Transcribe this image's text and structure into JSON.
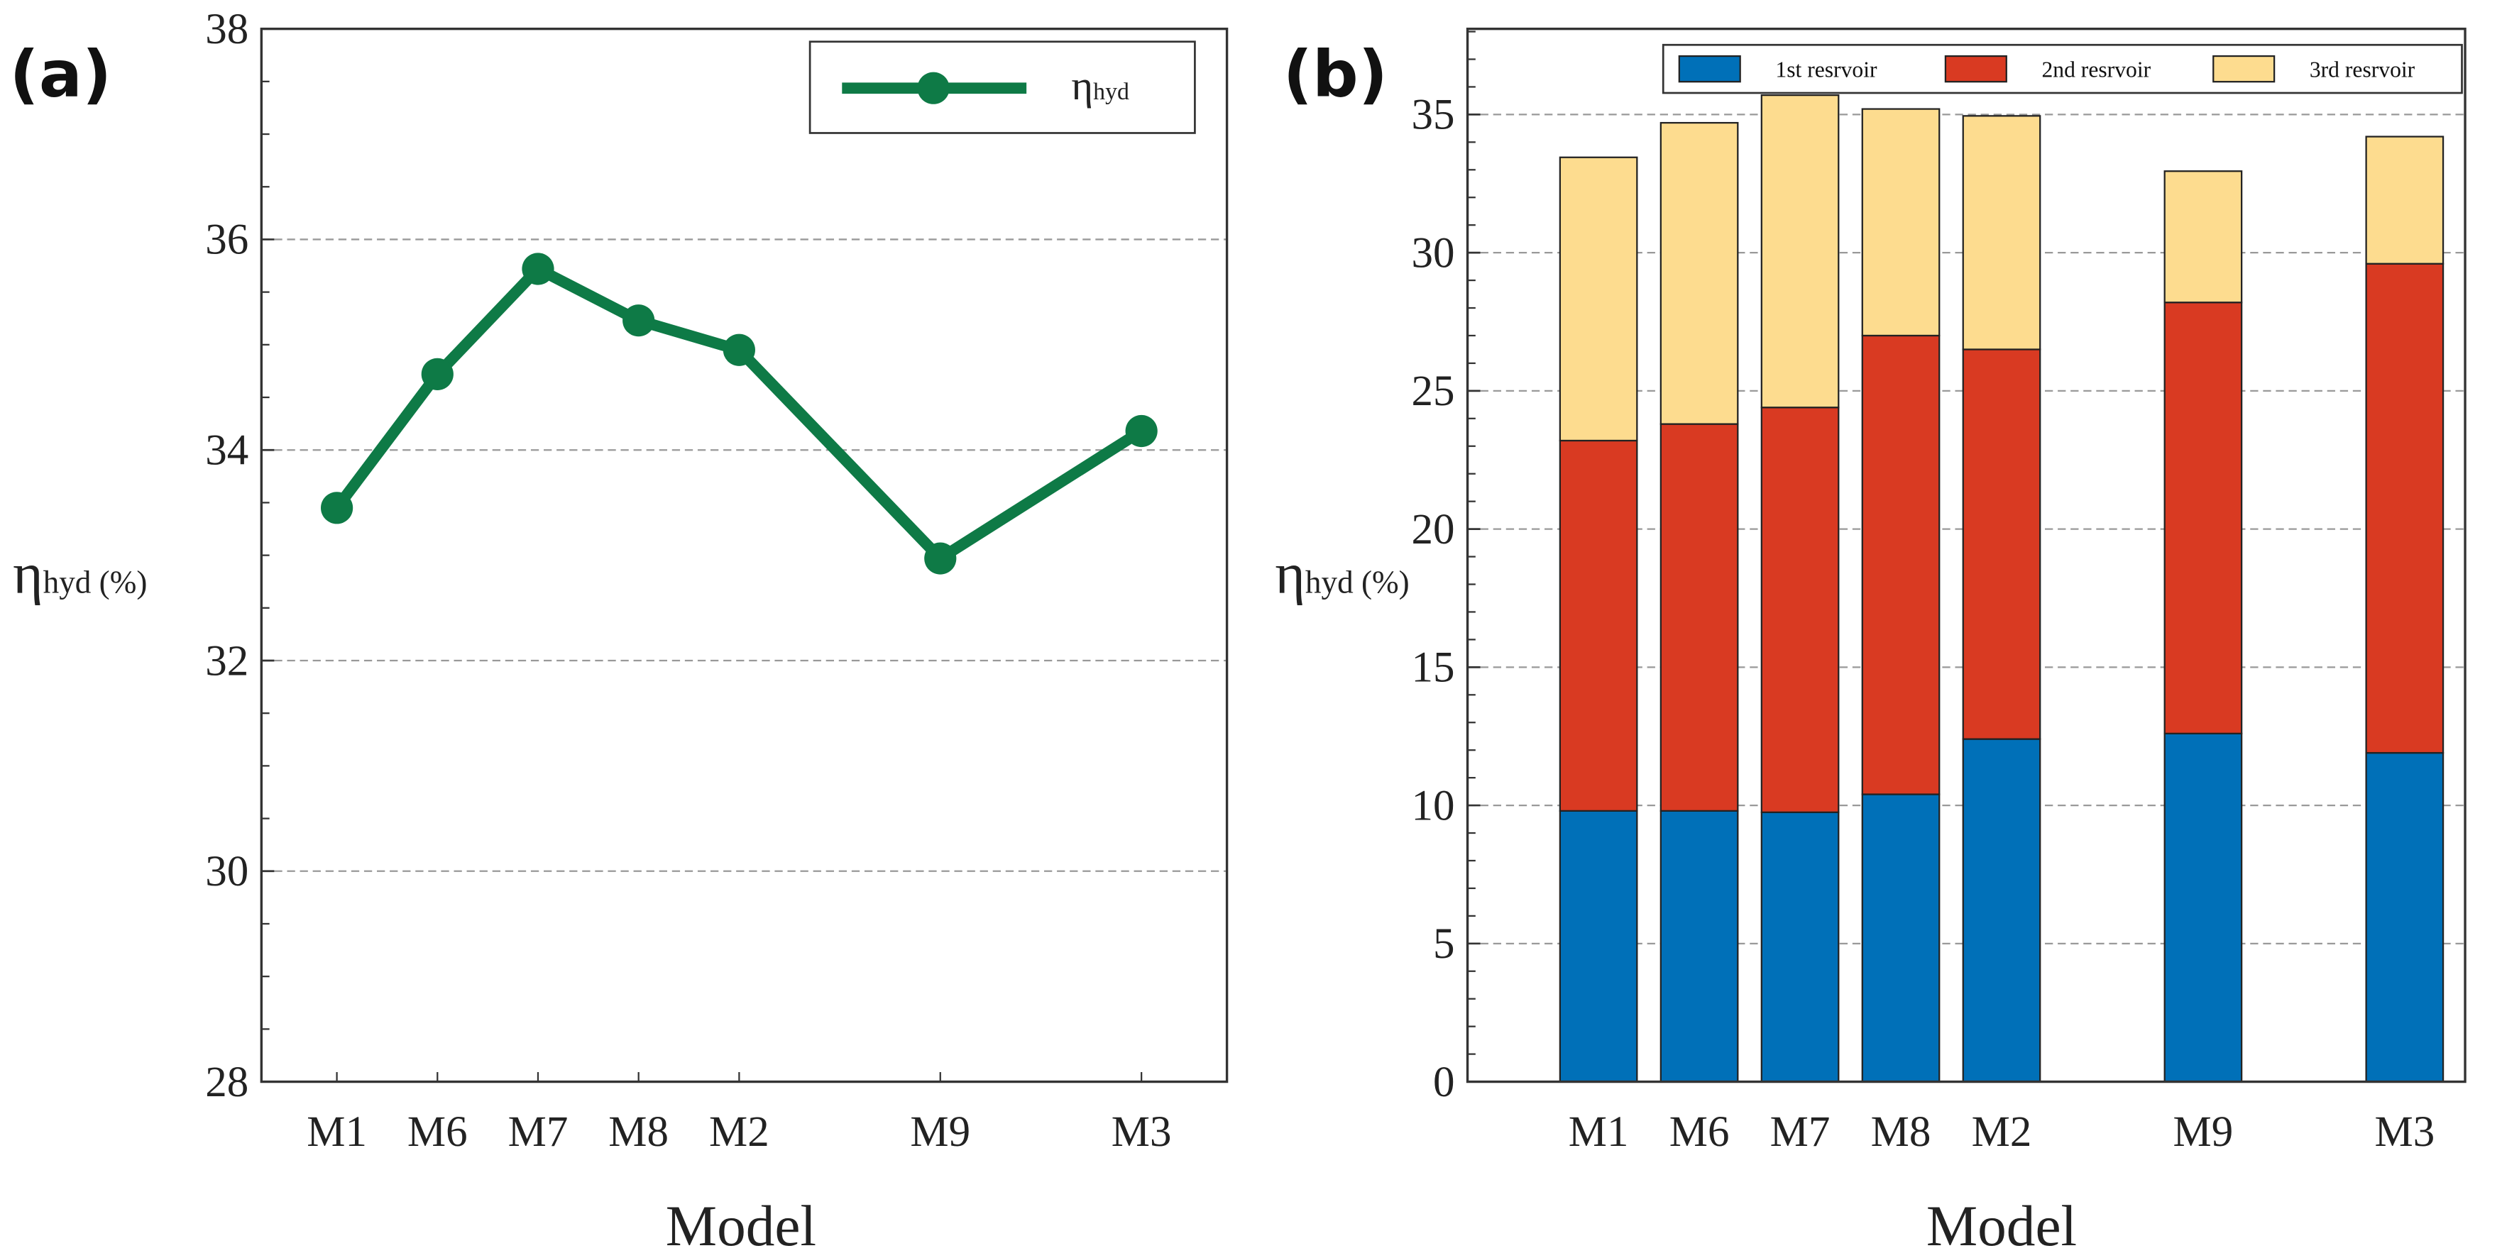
{
  "chart_data": [
    {
      "type": "line",
      "panel_label": "(a)",
      "title": "",
      "xlabel": "Model",
      "ylabel_main": "η",
      "ylabel_sub": "hyd (%)",
      "categories": [
        "M1",
        "M6",
        "M7",
        "M8",
        "M2",
        "M9",
        "M3"
      ],
      "x_positions": [
        1,
        2,
        3,
        4,
        5,
        7,
        9
      ],
      "xlim": [
        0.25,
        9.85
      ],
      "ylim": [
        28,
        38
      ],
      "yticks": [
        28,
        30,
        32,
        34,
        36,
        38
      ],
      "grid": true,
      "legend": {
        "placement": "top-right",
        "main": "η",
        "sub": "hyd"
      },
      "series": [
        {
          "name": "ηhyd",
          "color": "#0e7a46",
          "values": [
            33.45,
            34.72,
            35.72,
            35.23,
            34.95,
            32.97,
            34.18
          ]
        }
      ]
    },
    {
      "type": "bar",
      "stacked": true,
      "panel_label": "(b)",
      "title": "",
      "xlabel": "Model",
      "ylabel_main": "η",
      "ylabel_sub": "hyd (%)",
      "categories": [
        "M1",
        "M6",
        "M7",
        "M8",
        "M2",
        "M9",
        "M3"
      ],
      "x_positions": [
        1,
        2,
        3,
        4,
        5,
        7,
        9
      ],
      "xlim": [
        -0.3,
        9.6
      ],
      "ylim": [
        0,
        38.1
      ],
      "yticks": [
        0,
        5,
        10,
        15,
        20,
        25,
        30,
        35
      ],
      "grid": true,
      "legend": {
        "placement": "top"
      },
      "series": [
        {
          "name": "1st resrvoir",
          "color": "#0070b8",
          "values": [
            9.8,
            9.8,
            9.75,
            10.4,
            12.4,
            12.6,
            11.9
          ]
        },
        {
          "name": "2nd resrvoir",
          "color": "#d93a22",
          "values": [
            13.4,
            14.0,
            14.65,
            16.6,
            14.1,
            15.6,
            17.7
          ]
        },
        {
          "name": "3rd resrvoir",
          "color": "#fddc8f",
          "values": [
            10.25,
            10.9,
            11.3,
            8.2,
            8.45,
            4.75,
            4.6
          ]
        }
      ]
    }
  ]
}
